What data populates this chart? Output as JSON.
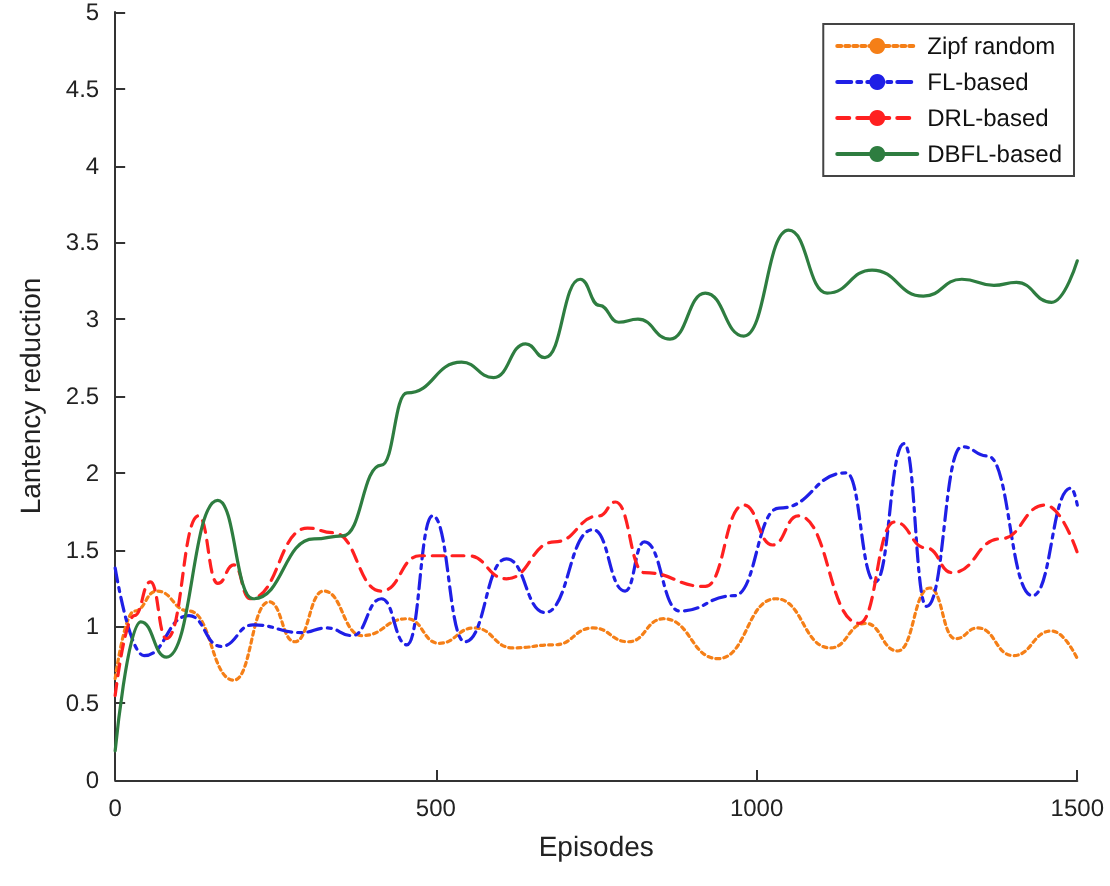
{
  "chart_data": {
    "type": "line",
    "xlabel": "Episodes",
    "ylabel": "Lantency reduction",
    "xlim": [
      0,
      1500
    ],
    "xticks": [
      0,
      500,
      1000,
      1500
    ],
    "ylim": [
      0,
      5
    ],
    "yticks": [
      0,
      0.5,
      1,
      1.5,
      2,
      2.5,
      3,
      3.5,
      4,
      4.5,
      5
    ],
    "grid": false,
    "legend": "top right",
    "marker": "none",
    "series": [
      {
        "name": "Zipf random",
        "color": "#f57f17",
        "line_style": "dotted",
        "x": [
          0,
          30,
          65,
          115,
          185,
          240,
          280,
          325,
          385,
          455,
          505,
          560,
          620,
          685,
          745,
          800,
          855,
          940,
          1030,
          1115,
          1170,
          1220,
          1270,
          1310,
          1345,
          1400,
          1460,
          1500
        ],
        "values": [
          0.66,
          1.1,
          1.23,
          1.1,
          0.65,
          1.16,
          0.9,
          1.23,
          0.94,
          1.05,
          0.89,
          0.99,
          0.86,
          0.88,
          0.99,
          0.9,
          1.05,
          0.79,
          1.18,
          0.86,
          1.02,
          0.84,
          1.25,
          0.92,
          0.99,
          0.81,
          0.97,
          0.79
        ]
      },
      {
        "name": "FL-based",
        "color": "#1f1fe6",
        "line_style": "dashdot",
        "x": [
          0,
          45,
          115,
          165,
          215,
          290,
          330,
          370,
          415,
          455,
          495,
          545,
          610,
          670,
          745,
          795,
          825,
          880,
          965,
          1035,
          1140,
          1185,
          1230,
          1265,
          1320,
          1360,
          1430,
          1490,
          1500
        ],
        "values": [
          1.38,
          0.81,
          1.07,
          0.87,
          1.01,
          0.96,
          0.99,
          0.94,
          1.18,
          0.88,
          1.72,
          0.9,
          1.44,
          1.09,
          1.63,
          1.23,
          1.55,
          1.1,
          1.2,
          1.77,
          2.0,
          1.29,
          2.19,
          1.13,
          2.17,
          2.11,
          1.2,
          1.9,
          1.79
        ]
      },
      {
        "name": "DRL-based",
        "color": "#ff2020",
        "line_style": "dashed",
        "x": [
          0,
          30,
          55,
          80,
          130,
          160,
          185,
          210,
          300,
          340,
          415,
          475,
          550,
          610,
          685,
          755,
          780,
          825,
          920,
          980,
          1025,
          1065,
          1160,
          1215,
          1265,
          1305,
          1380,
          1450,
          1500
        ],
        "values": [
          0.55,
          1.07,
          1.29,
          0.92,
          1.72,
          1.28,
          1.4,
          1.18,
          1.64,
          1.61,
          1.23,
          1.46,
          1.46,
          1.31,
          1.55,
          1.72,
          1.81,
          1.35,
          1.26,
          1.79,
          1.53,
          1.72,
          1.02,
          1.68,
          1.51,
          1.35,
          1.57,
          1.79,
          1.48
        ]
      },
      {
        "name": "DBFL-based",
        "color": "#2e7d40",
        "line_style": "solid",
        "x": [
          0,
          40,
          80,
          160,
          215,
          310,
          355,
          415,
          455,
          540,
          590,
          640,
          670,
          725,
          755,
          785,
          815,
          865,
          920,
          980,
          1050,
          1110,
          1180,
          1260,
          1320,
          1370,
          1405,
          1460,
          1500
        ],
        "values": [
          0.19,
          1.03,
          0.8,
          1.82,
          1.18,
          1.57,
          1.59,
          2.05,
          2.52,
          2.72,
          2.62,
          2.84,
          2.75,
          3.26,
          3.09,
          2.98,
          3.0,
          2.87,
          3.17,
          2.89,
          3.58,
          3.17,
          3.32,
          3.15,
          3.26,
          3.22,
          3.24,
          3.11,
          3.38
        ]
      }
    ]
  }
}
